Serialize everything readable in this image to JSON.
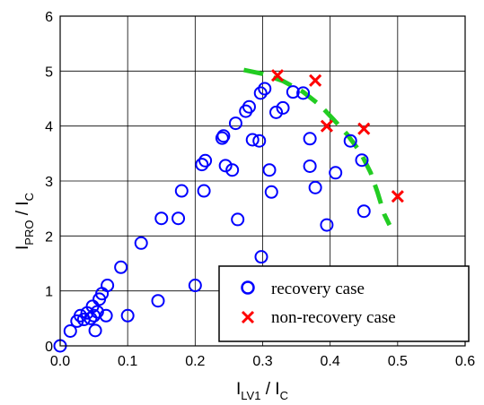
{
  "chart_data": {
    "type": "scatter",
    "title": "",
    "xlabel": {
      "main": "I",
      "sub": "LV1",
      "rest": " / I",
      "sub2": "C"
    },
    "ylabel": {
      "main": "I",
      "sub": "PRO",
      "rest": " / I",
      "sub2": "C"
    },
    "xlim": [
      0,
      0.6
    ],
    "ylim": [
      0,
      6
    ],
    "xticks": [
      0,
      0.1,
      0.2,
      0.3,
      0.4,
      0.5,
      0.6
    ],
    "xtick_labels": [
      "0.0",
      "0.1",
      "0.2",
      "0.3",
      "0.4",
      "0.5",
      "0.6"
    ],
    "yticks": [
      0,
      1,
      2,
      3,
      4,
      5,
      6
    ],
    "ytick_labels": [
      "0",
      "1",
      "2",
      "3",
      "4",
      "5",
      "6"
    ],
    "grid": true,
    "legend_position": "bottom-right",
    "series": [
      {
        "name": "recovery case",
        "marker": "circle",
        "color": "#0000ff",
        "points": [
          [
            0.0,
            0.0
          ],
          [
            0.015,
            0.27
          ],
          [
            0.025,
            0.45
          ],
          [
            0.03,
            0.55
          ],
          [
            0.035,
            0.48
          ],
          [
            0.04,
            0.6
          ],
          [
            0.045,
            0.5
          ],
          [
            0.048,
            0.72
          ],
          [
            0.05,
            0.55
          ],
          [
            0.052,
            0.28
          ],
          [
            0.055,
            0.62
          ],
          [
            0.058,
            0.85
          ],
          [
            0.062,
            0.95
          ],
          [
            0.068,
            0.55
          ],
          [
            0.07,
            1.1
          ],
          [
            0.09,
            1.43
          ],
          [
            0.1,
            0.55
          ],
          [
            0.12,
            1.87
          ],
          [
            0.145,
            0.82
          ],
          [
            0.15,
            2.32
          ],
          [
            0.175,
            2.32
          ],
          [
            0.18,
            2.82
          ],
          [
            0.2,
            1.1
          ],
          [
            0.21,
            3.3
          ],
          [
            0.213,
            2.82
          ],
          [
            0.215,
            3.37
          ],
          [
            0.24,
            3.78
          ],
          [
            0.242,
            3.82
          ],
          [
            0.245,
            3.28
          ],
          [
            0.255,
            3.2
          ],
          [
            0.26,
            4.05
          ],
          [
            0.263,
            2.3
          ],
          [
            0.275,
            4.27
          ],
          [
            0.28,
            4.35
          ],
          [
            0.285,
            3.75
          ],
          [
            0.298,
            1.62
          ],
          [
            0.295,
            3.73
          ],
          [
            0.297,
            4.6
          ],
          [
            0.303,
            4.68
          ],
          [
            0.31,
            3.2
          ],
          [
            0.313,
            2.8
          ],
          [
            0.32,
            4.25
          ],
          [
            0.33,
            4.33
          ],
          [
            0.345,
            4.62
          ],
          [
            0.36,
            4.6
          ],
          [
            0.37,
            3.77
          ],
          [
            0.37,
            3.27
          ],
          [
            0.378,
            2.88
          ],
          [
            0.395,
            2.2
          ],
          [
            0.408,
            3.15
          ],
          [
            0.43,
            3.73
          ],
          [
            0.447,
            3.38
          ],
          [
            0.45,
            2.45
          ]
        ]
      },
      {
        "name": "non-recovery case",
        "marker": "x",
        "color": "#ff0000",
        "points": [
          [
            0.322,
            4.92
          ],
          [
            0.378,
            4.83
          ],
          [
            0.395,
            4.0
          ],
          [
            0.45,
            3.95
          ],
          [
            0.5,
            2.72
          ]
        ]
      }
    ],
    "boundary_curve": {
      "color": "#22cc22",
      "style": "dashed",
      "points": [
        [
          0.272,
          5.02
        ],
        [
          0.3,
          4.95
        ],
        [
          0.33,
          4.82
        ],
        [
          0.36,
          4.62
        ],
        [
          0.385,
          4.38
        ],
        [
          0.405,
          4.12
        ],
        [
          0.425,
          3.85
        ],
        [
          0.445,
          3.52
        ],
        [
          0.46,
          3.15
        ],
        [
          0.47,
          2.8
        ],
        [
          0.48,
          2.4
        ],
        [
          0.488,
          2.2
        ]
      ]
    }
  }
}
